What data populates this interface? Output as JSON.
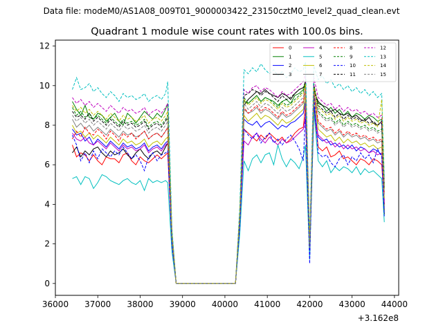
{
  "header": {
    "data_file": "Data file: modeM0/AS1A08_009T01_9000003422_23150cztM0_level2_quad_clean.evt"
  },
  "chart_data": {
    "type": "line",
    "title": "Quadrant 1 module wise count rates with 100.0s bins.",
    "xlabel": "",
    "ylabel": "",
    "x_offset_label": "+3.162e8",
    "xlim": [
      36000,
      44100
    ],
    "ylim": [
      -0.6,
      12.3
    ],
    "xticks": [
      36000,
      37000,
      38000,
      39000,
      40000,
      41000,
      42000,
      43000,
      44000
    ],
    "xtick_labels": [
      "36000",
      "37000",
      "38000",
      "39000",
      "40000",
      "41000",
      "42000",
      "43000",
      "44000"
    ],
    "yticks": [
      0,
      2,
      4,
      6,
      8,
      10,
      12
    ],
    "ytick_labels": [
      "0",
      "2",
      "4",
      "6",
      "8",
      "10",
      "12"
    ],
    "legend_position": "upper right",
    "x": [
      36400,
      36500,
      36600,
      36700,
      36800,
      36900,
      37000,
      37100,
      37200,
      37300,
      37400,
      37500,
      37600,
      37700,
      37800,
      37900,
      38000,
      38100,
      38200,
      38300,
      38400,
      38500,
      38600,
      38650,
      38750,
      38850,
      38950,
      39300,
      39700,
      40000,
      40250,
      40350,
      40450,
      40550,
      40650,
      40750,
      40850,
      40950,
      41050,
      41150,
      41250,
      41350,
      41450,
      41550,
      41650,
      41750,
      41850,
      41900,
      42000,
      42100,
      42200,
      42300,
      42400,
      42500,
      42600,
      42700,
      42800,
      42900,
      43000,
      43100,
      43200,
      43300,
      43400,
      43500,
      43600,
      43700,
      43760
    ],
    "series": [
      {
        "name": "0",
        "color": "#ff0000",
        "dash": false,
        "values": [
          7.0,
          6.4,
          6.6,
          6.5,
          6.2,
          6.5,
          6.2,
          6.0,
          6.4,
          6.3,
          6.3,
          6.1,
          6.5,
          6.6,
          6.2,
          6.0,
          6.4,
          6.2,
          6.1,
          6.3,
          6.5,
          6.3,
          6.5,
          6.6,
          2.0,
          0.0,
          0.0,
          0.0,
          0.0,
          0.0,
          0.0,
          2.9,
          7.8,
          7.6,
          7.4,
          7.2,
          7.5,
          7.3,
          7.6,
          7.4,
          7.2,
          7.4,
          7.1,
          7.3,
          7.6,
          7.8,
          7.9,
          9.0,
          1.5,
          8.9,
          6.9,
          6.7,
          6.9,
          6.4,
          6.5,
          6.7,
          6.3,
          6.4,
          6.2,
          6.0,
          6.3,
          6.2,
          6.0,
          6.3,
          6.2,
          6.0,
          4.0
        ]
      },
      {
        "name": "1",
        "color": "#008000",
        "dash": false,
        "values": [
          9.2,
          8.8,
          8.5,
          9.0,
          8.4,
          8.3,
          8.6,
          8.5,
          8.2,
          8.4,
          8.6,
          8.2,
          8.0,
          8.6,
          8.4,
          8.1,
          8.4,
          8.7,
          8.5,
          8.3,
          8.6,
          8.4,
          8.8,
          9.1,
          2.5,
          0.0,
          0.0,
          0.0,
          0.0,
          0.0,
          0.0,
          3.4,
          9.2,
          9.1,
          9.3,
          9.5,
          9.2,
          9.4,
          9.3,
          9.2,
          9.0,
          9.2,
          9.3,
          9.1,
          9.5,
          9.6,
          9.8,
          10.0,
          1.9,
          9.8,
          9.1,
          9.0,
          8.7,
          8.9,
          8.6,
          8.8,
          8.5,
          8.7,
          8.4,
          8.6,
          8.5,
          8.3,
          8.5,
          8.4,
          8.2,
          8.3,
          5.0
        ]
      },
      {
        "name": "2",
        "color": "#0000ff",
        "dash": false,
        "values": [
          7.8,
          7.5,
          7.6,
          7.2,
          7.4,
          7.0,
          7.3,
          7.1,
          6.9,
          7.2,
          7.0,
          6.8,
          7.1,
          6.9,
          7.0,
          6.8,
          6.9,
          7.1,
          6.7,
          6.9,
          7.0,
          6.8,
          7.1,
          7.2,
          2.2,
          0.0,
          0.0,
          0.0,
          0.0,
          0.0,
          0.0,
          3.1,
          8.3,
          8.1,
          8.0,
          8.2,
          7.9,
          8.1,
          8.2,
          8.0,
          7.8,
          8.0,
          7.9,
          8.1,
          8.2,
          8.4,
          8.6,
          9.2,
          1.7,
          9.0,
          7.4,
          7.2,
          7.3,
          7.0,
          7.1,
          6.9,
          7.0,
          6.8,
          7.0,
          6.7,
          6.9,
          6.8,
          6.6,
          6.8,
          6.7,
          6.5,
          4.2
        ]
      },
      {
        "name": "3",
        "color": "#000000",
        "dash": false,
        "values": [
          6.6,
          6.9,
          6.4,
          6.7,
          6.5,
          6.8,
          6.9,
          6.6,
          6.4,
          6.7,
          6.5,
          6.6,
          6.8,
          6.5,
          6.3,
          6.6,
          6.8,
          6.5,
          6.3,
          6.6,
          6.7,
          6.5,
          6.9,
          7.1,
          2.1,
          0.0,
          0.0,
          0.0,
          0.0,
          0.0,
          0.0,
          3.0,
          9.0,
          9.3,
          9.5,
          9.7,
          9.6,
          9.8,
          9.6,
          9.5,
          9.4,
          9.6,
          9.5,
          9.3,
          9.6,
          9.8,
          9.9,
          10.1,
          1.4,
          9.7,
          9.2,
          9.0,
          8.9,
          8.7,
          8.8,
          8.6,
          8.5,
          8.6,
          8.4,
          8.5,
          8.3,
          8.2,
          8.4,
          8.1,
          8.0,
          8.2,
          3.5
        ]
      },
      {
        "name": "4",
        "color": "#bf00bf",
        "dash": false,
        "values": [
          7.6,
          7.3,
          7.2,
          7.4,
          7.1,
          7.0,
          7.2,
          7.0,
          6.8,
          7.1,
          6.9,
          6.7,
          7.0,
          6.8,
          6.9,
          6.7,
          6.8,
          7.0,
          6.6,
          6.8,
          6.9,
          6.7,
          7.0,
          7.1,
          2.1,
          0.0,
          0.0,
          0.0,
          0.0,
          0.0,
          0.0,
          3.0,
          7.2,
          7.0,
          7.4,
          7.6,
          7.3,
          7.1,
          7.4,
          7.2,
          7.0,
          7.3,
          7.1,
          7.2,
          7.4,
          7.6,
          7.8,
          8.4,
          1.6,
          8.6,
          7.5,
          7.3,
          7.1,
          7.2,
          6.9,
          7.1,
          6.8,
          7.0,
          6.8,
          6.9,
          6.7,
          6.8,
          6.6,
          6.7,
          6.5,
          6.6,
          4.1
        ]
      },
      {
        "name": "5",
        "color": "#00bfbf",
        "dash": false,
        "values": [
          5.3,
          5.4,
          5.0,
          5.4,
          5.3,
          4.8,
          5.1,
          5.5,
          5.4,
          5.2,
          5.1,
          5.0,
          5.2,
          5.3,
          5.1,
          5.0,
          5.2,
          4.7,
          5.3,
          5.1,
          5.2,
          5.1,
          5.2,
          5.1,
          1.6,
          0.0,
          0.0,
          0.0,
          0.0,
          0.0,
          0.0,
          2.5,
          6.2,
          5.7,
          6.3,
          6.5,
          6.1,
          6.5,
          6.6,
          6.0,
          7.0,
          6.3,
          5.9,
          6.3,
          6.1,
          5.8,
          6.4,
          7.0,
          1.2,
          8.7,
          6.2,
          5.9,
          6.2,
          5.6,
          5.9,
          5.7,
          5.9,
          5.8,
          5.6,
          5.9,
          5.5,
          5.8,
          5.6,
          5.7,
          5.5,
          5.3,
          3.1
        ]
      },
      {
        "name": "6",
        "color": "#bfbf00",
        "dash": false,
        "values": [
          8.0,
          7.6,
          7.7,
          7.4,
          7.6,
          7.3,
          7.5,
          7.3,
          7.1,
          7.4,
          7.2,
          7.0,
          7.3,
          7.1,
          7.2,
          7.0,
          7.1,
          7.3,
          6.9,
          7.1,
          7.2,
          7.0,
          7.3,
          7.4,
          2.2,
          0.0,
          0.0,
          0.0,
          0.0,
          0.0,
          0.0,
          3.2,
          8.5,
          8.2,
          8.4,
          8.6,
          8.3,
          8.5,
          8.4,
          8.2,
          8.0,
          8.3,
          8.1,
          8.2,
          8.4,
          8.6,
          8.8,
          9.5,
          1.8,
          9.4,
          7.8,
          7.6,
          7.4,
          7.5,
          7.2,
          7.4,
          7.1,
          7.3,
          7.1,
          7.2,
          7.0,
          7.1,
          6.9,
          7.0,
          6.8,
          6.9,
          4.3
        ]
      },
      {
        "name": "7",
        "color": "#808080",
        "dash": false,
        "values": [
          8.3,
          7.9,
          8.1,
          7.8,
          8.0,
          7.7,
          7.9,
          7.7,
          7.5,
          7.8,
          7.6,
          7.4,
          7.7,
          7.5,
          7.6,
          7.4,
          7.5,
          7.7,
          7.3,
          7.5,
          7.6,
          7.4,
          7.7,
          7.9,
          2.3,
          0.0,
          0.0,
          0.0,
          0.0,
          0.0,
          0.0,
          3.3,
          8.8,
          8.6,
          8.7,
          8.9,
          8.6,
          8.8,
          8.7,
          8.5,
          8.3,
          8.6,
          8.4,
          8.5,
          8.7,
          8.9,
          9.1,
          9.8,
          1.8,
          9.6,
          8.1,
          7.9,
          7.7,
          7.8,
          7.5,
          7.7,
          7.4,
          7.6,
          7.4,
          7.5,
          7.3,
          7.4,
          7.2,
          7.3,
          7.1,
          7.2,
          4.5
        ]
      },
      {
        "name": "8",
        "color": "#ff0000",
        "dash": true,
        "values": [
          7.3,
          7.7,
          7.4,
          7.9,
          7.6,
          7.5,
          7.8,
          7.6,
          7.3,
          7.7,
          7.5,
          7.2,
          7.6,
          7.4,
          7.6,
          7.3,
          7.5,
          7.7,
          7.3,
          7.5,
          7.6,
          7.4,
          7.7,
          7.9,
          2.3,
          0.0,
          0.0,
          0.0,
          0.0,
          0.0,
          0.0,
          3.3,
          8.9,
          8.6,
          8.8,
          9.0,
          8.7,
          8.9,
          8.8,
          8.6,
          8.4,
          8.7,
          8.5,
          8.6,
          8.8,
          9.0,
          9.2,
          9.9,
          1.9,
          9.7,
          8.2,
          8.0,
          7.8,
          7.9,
          7.6,
          7.8,
          7.5,
          7.7,
          7.5,
          7.6,
          7.4,
          7.5,
          7.3,
          7.4,
          7.2,
          7.3,
          4.6
        ]
      },
      {
        "name": "9",
        "color": "#008000",
        "dash": true,
        "values": [
          8.9,
          8.5,
          8.7,
          8.4,
          8.6,
          8.3,
          8.5,
          8.3,
          8.1,
          8.4,
          8.2,
          8.0,
          8.3,
          8.1,
          8.2,
          8.0,
          8.1,
          8.3,
          7.9,
          8.1,
          8.2,
          8.0,
          8.3,
          8.5,
          2.5,
          0.0,
          0.0,
          0.0,
          0.0,
          0.0,
          0.0,
          3.5,
          9.4,
          9.1,
          9.3,
          9.5,
          9.2,
          9.4,
          9.3,
          9.1,
          8.9,
          9.2,
          9.0,
          9.1,
          9.3,
          9.5,
          9.7,
          10.3,
          2.0,
          10.1,
          8.7,
          8.5,
          8.3,
          8.4,
          8.1,
          8.3,
          8.0,
          8.2,
          8.0,
          8.1,
          7.9,
          8.0,
          7.8,
          7.9,
          7.7,
          7.8,
          4.8
        ]
      },
      {
        "name": "10",
        "color": "#0000ff",
        "dash": true,
        "values": [
          7.5,
          7.0,
          6.2,
          6.6,
          6.1,
          6.7,
          6.3,
          6.8,
          6.6,
          6.4,
          6.7,
          6.5,
          6.9,
          6.6,
          6.3,
          6.5,
          6.2,
          5.7,
          6.4,
          6.6,
          6.2,
          6.5,
          6.6,
          6.7,
          2.0,
          0.0,
          0.0,
          0.0,
          0.0,
          0.0,
          0.0,
          2.9,
          7.8,
          7.5,
          7.3,
          7.6,
          7.1,
          7.4,
          7.6,
          7.1,
          7.3,
          7.0,
          7.3,
          7.5,
          7.2,
          6.8,
          6.2,
          8.6,
          1.0,
          9.5,
          6.6,
          6.4,
          6.5,
          6.1,
          5.9,
          6.3,
          6.5,
          6.0,
          6.4,
          6.2,
          6.6,
          6.3,
          6.5,
          6.1,
          6.8,
          6.4,
          3.4
        ]
      },
      {
        "name": "11",
        "color": "#000000",
        "dash": true,
        "values": [
          8.7,
          8.4,
          8.5,
          8.3,
          8.6,
          8.2,
          8.4,
          8.2,
          8.0,
          8.3,
          8.1,
          7.9,
          8.2,
          8.0,
          8.1,
          7.9,
          8.0,
          8.2,
          7.8,
          8.0,
          8.1,
          7.9,
          8.2,
          8.4,
          2.5,
          0.0,
          0.0,
          0.0,
          0.0,
          0.0,
          0.0,
          3.4,
          9.5,
          9.6,
          9.8,
          9.7,
          9.5,
          9.7,
          9.6,
          9.4,
          9.2,
          9.5,
          9.3,
          9.4,
          9.6,
          9.8,
          9.9,
          10.2,
          1.9,
          10.0,
          9.0,
          8.8,
          8.6,
          8.7,
          8.4,
          8.6,
          8.3,
          8.5,
          8.3,
          8.4,
          8.2,
          8.3,
          8.1,
          8.2,
          8.0,
          8.1,
          4.9
        ]
      },
      {
        "name": "12",
        "color": "#bf00bf",
        "dash": true,
        "values": [
          9.4,
          9.1,
          9.3,
          9.0,
          9.2,
          8.9,
          9.1,
          8.9,
          8.7,
          9.0,
          8.8,
          8.6,
          8.9,
          8.7,
          8.8,
          8.6,
          8.7,
          8.9,
          8.5,
          8.7,
          8.8,
          8.6,
          8.9,
          9.1,
          2.6,
          0.0,
          0.0,
          0.0,
          0.0,
          0.0,
          0.0,
          3.6,
          9.8,
          9.6,
          9.9,
          10.0,
          9.7,
          9.9,
          9.8,
          9.6,
          9.4,
          9.7,
          9.5,
          9.6,
          9.8,
          10.0,
          10.2,
          10.6,
          2.1,
          10.4,
          9.4,
          9.2,
          9.0,
          9.1,
          8.8,
          9.0,
          8.7,
          8.9,
          8.7,
          8.8,
          8.6,
          8.7,
          8.5,
          8.6,
          8.4,
          8.5,
          5.1
        ]
      },
      {
        "name": "13",
        "color": "#00bfbf",
        "dash": true,
        "values": [
          9.8,
          10.4,
          9.8,
          9.9,
          10.1,
          9.7,
          9.9,
          9.6,
          9.4,
          9.7,
          9.5,
          9.2,
          9.6,
          9.4,
          9.5,
          9.3,
          9.4,
          9.6,
          9.2,
          9.4,
          9.5,
          9.3,
          9.6,
          10.2,
          2.8,
          0.0,
          0.0,
          0.0,
          0.0,
          0.0,
          0.0,
          3.9,
          10.8,
          10.6,
          10.9,
          10.7,
          11.1,
          10.8,
          10.6,
          10.8,
          10.5,
          10.7,
          10.4,
          10.6,
          10.9,
          10.7,
          10.8,
          11.2,
          2.2,
          11.0,
          10.3,
          10.5,
          10.1,
          10.3,
          9.9,
          10.1,
          9.8,
          10.0,
          9.7,
          9.9,
          9.6,
          9.8,
          9.5,
          9.7,
          9.4,
          9.6,
          5.4
        ]
      },
      {
        "name": "14",
        "color": "#bfbf00",
        "dash": true,
        "values": [
          9.0,
          8.7,
          8.9,
          8.6,
          8.8,
          8.5,
          8.7,
          8.5,
          8.3,
          8.6,
          8.4,
          8.2,
          8.5,
          8.3,
          8.4,
          8.2,
          8.3,
          8.5,
          8.1,
          8.3,
          8.4,
          8.2,
          8.5,
          8.7,
          2.5,
          0.0,
          0.0,
          0.0,
          0.0,
          0.0,
          0.0,
          3.5,
          9.3,
          9.0,
          9.2,
          9.4,
          9.1,
          9.3,
          9.2,
          9.0,
          8.8,
          9.1,
          8.9,
          9.0,
          9.2,
          9.4,
          9.6,
          10.1,
          2.0,
          9.9,
          8.9,
          8.7,
          8.5,
          8.6,
          8.3,
          8.5,
          8.2,
          8.4,
          8.2,
          8.3,
          8.1,
          8.2,
          8.0,
          8.1,
          7.9,
          9.3,
          4.8
        ]
      },
      {
        "name": "15",
        "color": "#808080",
        "dash": true,
        "values": [
          8.5,
          8.2,
          8.4,
          8.1,
          8.3,
          8.0,
          8.2,
          8.0,
          7.8,
          8.1,
          7.9,
          7.7,
          8.0,
          7.8,
          7.9,
          7.7,
          7.8,
          8.0,
          7.6,
          7.8,
          7.9,
          7.7,
          8.0,
          8.2,
          2.4,
          0.0,
          0.0,
          0.0,
          0.0,
          0.0,
          0.0,
          3.4,
          9.1,
          8.8,
          9.0,
          9.2,
          8.9,
          9.1,
          9.0,
          8.8,
          8.6,
          8.9,
          8.7,
          8.8,
          9.0,
          9.2,
          9.4,
          9.9,
          1.9,
          9.7,
          8.6,
          8.4,
          8.2,
          8.3,
          8.0,
          8.2,
          7.9,
          8.1,
          7.9,
          8.0,
          7.8,
          7.9,
          7.7,
          7.8,
          7.6,
          7.7,
          4.6
        ]
      }
    ]
  }
}
